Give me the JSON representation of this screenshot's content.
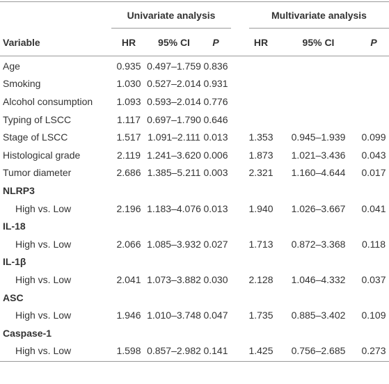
{
  "header": {
    "groups": [
      "Univariate analysis",
      "Multivariate analysis"
    ],
    "columns": [
      "Variable",
      "HR",
      "95% CI",
      "P",
      "HR",
      "95% CI",
      "P"
    ]
  },
  "rows": [
    {
      "label": "Age",
      "univariate": [
        "0.935",
        "0.497–1.759",
        "0.836"
      ]
    },
    {
      "label": "Smoking",
      "univariate": [
        "1.030",
        "0.527–2.014",
        "0.931"
      ]
    },
    {
      "label": "Alcohol consumption",
      "univariate": [
        "1.093",
        "0.593–2.014",
        "0.776"
      ]
    },
    {
      "label": "Typing of LSCC",
      "univariate": [
        "1.117",
        "0.697–1.790",
        "0.646"
      ]
    },
    {
      "label": "Stage of LSCC",
      "univariate": [
        "1.517",
        "1.091–2.111",
        "0.013"
      ],
      "multivariate": [
        "1.353",
        "0.945–1.939",
        "0.099"
      ]
    },
    {
      "label": "Histological grade",
      "univariate": [
        "2.119",
        "1.241–3.620",
        "0.006"
      ],
      "multivariate": [
        "1.873",
        "1.021–3.436",
        "0.043"
      ]
    },
    {
      "label": "Tumor diameter",
      "univariate": [
        "2.686",
        "1.385–5.211",
        "0.003"
      ],
      "multivariate": [
        "2.321",
        "1.160–4.644",
        "0.017"
      ]
    },
    {
      "section": "NLRP3"
    },
    {
      "label": "High vs. Low",
      "univariate": [
        "2.196",
        "1.183–4.076",
        "0.013"
      ],
      "multivariate": [
        "1.940",
        "1.026–3.667",
        "0.041"
      ]
    },
    {
      "section": "IL-18"
    },
    {
      "label": "High vs. Low",
      "univariate": [
        "2.066",
        "1.085–3.932",
        "0.027"
      ],
      "multivariate": [
        "1.713",
        "0.872–3.368",
        "0.118"
      ]
    },
    {
      "section": "IL-1β"
    },
    {
      "label": "High vs. Low",
      "univariate": [
        "2.041",
        "1.073–3.882",
        "0.030"
      ],
      "multivariate": [
        "2.128",
        "1.046–4.332",
        "0.037"
      ]
    },
    {
      "section": "ASC"
    },
    {
      "label": "High vs. Low",
      "univariate": [
        "1.946",
        "1.010–3.748",
        "0.047"
      ],
      "multivariate": [
        "1.735",
        "0.885–3.402",
        "0.109"
      ]
    },
    {
      "section": "Caspase-1"
    },
    {
      "label": "High vs. Low",
      "univariate": [
        "1.598",
        "0.857–2.982",
        "0.141"
      ],
      "multivariate": [
        "1.425",
        "0.756–2.685",
        "0.273"
      ]
    }
  ]
}
